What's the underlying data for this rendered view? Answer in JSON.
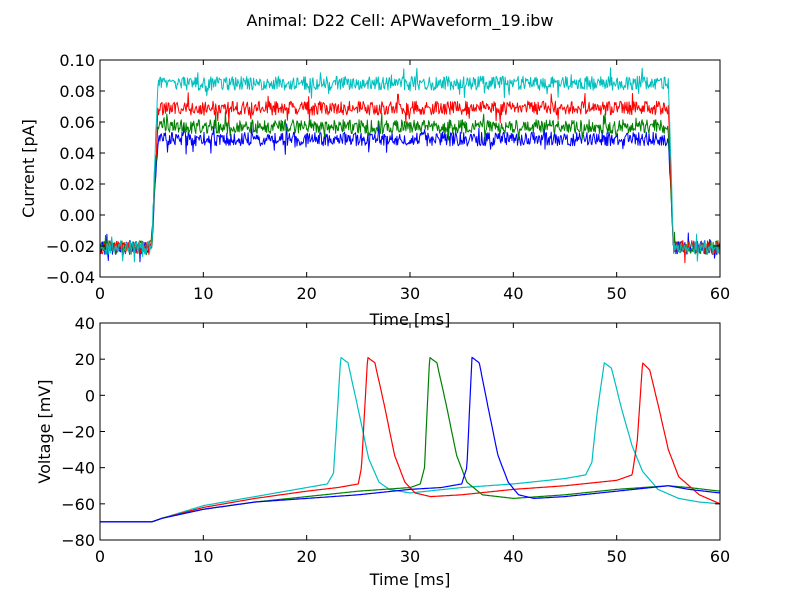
{
  "page": {
    "background": "#ffffff"
  },
  "suptitle": "Animal: D22 Cell: APWaveform_19.ibw",
  "chart_data": [
    {
      "type": "line",
      "panel": "top",
      "xlabel": "Time [ms]",
      "ylabel": "Current [pA]",
      "xlim": [
        0,
        60
      ],
      "ylim": [
        -0.04,
        0.1
      ],
      "xticks": [
        0,
        10,
        20,
        30,
        40,
        50,
        60
      ],
      "xtick_labels": [
        "0",
        "10",
        "20",
        "30",
        "40",
        "50",
        "60"
      ],
      "yticks": [
        -0.04,
        -0.02,
        0.0,
        0.02,
        0.04,
        0.06,
        0.08,
        0.1
      ],
      "ytick_labels": [
        "−0.04",
        "−0.02",
        "0.00",
        "0.02",
        "0.04",
        "0.06",
        "0.08",
        "0.10"
      ],
      "grid": false,
      "series": [
        {
          "color": "#0000ff",
          "noise": 0.0045,
          "x": [
            0,
            5,
            5.6,
            55,
            55.5,
            60
          ],
          "y": [
            -0.021,
            -0.021,
            0.049,
            0.049,
            -0.021,
            -0.021
          ]
        },
        {
          "color": "#008000",
          "noise": 0.0045,
          "x": [
            0,
            5,
            5.6,
            55,
            55.5,
            60
          ],
          "y": [
            -0.021,
            -0.021,
            0.057,
            0.057,
            -0.021,
            -0.021
          ]
        },
        {
          "color": "#ff0000",
          "noise": 0.0045,
          "x": [
            0,
            5,
            5.6,
            55,
            55.5,
            60
          ],
          "y": [
            -0.021,
            -0.021,
            0.069,
            0.069,
            -0.021,
            -0.021
          ]
        },
        {
          "color": "#00bfbf",
          "noise": 0.0045,
          "x": [
            0,
            5,
            5.6,
            55,
            55.5,
            60
          ],
          "y": [
            -0.021,
            -0.021,
            0.085,
            0.085,
            -0.021,
            -0.021
          ]
        }
      ]
    },
    {
      "type": "line",
      "panel": "bottom",
      "xlabel": "Time [ms]",
      "ylabel": "Voltage [mV]",
      "xlim": [
        0,
        60
      ],
      "ylim": [
        -80,
        40
      ],
      "xticks": [
        0,
        10,
        20,
        30,
        40,
        50,
        60
      ],
      "xtick_labels": [
        "0",
        "10",
        "20",
        "30",
        "40",
        "50",
        "60"
      ],
      "yticks": [
        -80,
        -60,
        -40,
        -20,
        0,
        20,
        40
      ],
      "ytick_labels": [
        "−80",
        "−60",
        "−40",
        "−20",
        "0",
        "20",
        "40"
      ],
      "grid": false,
      "series": [
        {
          "color": "#00bfbf",
          "x": [
            0,
            5,
            6,
            10,
            15,
            20,
            22,
            22.6,
            23.3,
            24,
            25,
            26,
            27,
            28,
            30,
            35,
            40,
            45,
            47,
            47.6,
            48.1,
            48.8,
            49.5,
            50.5,
            51.5,
            52.5,
            54,
            56,
            58,
            60
          ],
          "y": [
            -70,
            -70,
            -68,
            -61,
            -56,
            -51,
            -49,
            -43,
            21,
            18,
            -8,
            -35,
            -48,
            -52,
            -54,
            -51,
            -49,
            -46,
            -44,
            -37,
            -10,
            18,
            15,
            -8,
            -28,
            -42,
            -52,
            -57,
            -59,
            -60
          ]
        },
        {
          "color": "#ff0000",
          "x": [
            0,
            5,
            6,
            10,
            15,
            20,
            23,
            25,
            25.3,
            25.9,
            26.6,
            27.5,
            28.5,
            29.5,
            30.5,
            32,
            35,
            40,
            45,
            50,
            51.5,
            52,
            52.5,
            53.2,
            54,
            55,
            56,
            58,
            60
          ],
          "y": [
            -70,
            -70,
            -68,
            -62,
            -57,
            -53,
            -51,
            -49,
            -40,
            21,
            18,
            -5,
            -33,
            -48,
            -54,
            -56,
            -55,
            -52,
            -50,
            -47,
            -44,
            -25,
            18,
            14,
            -5,
            -30,
            -45,
            -55,
            -60
          ]
        },
        {
          "color": "#008000",
          "x": [
            0,
            5,
            6,
            10,
            15,
            20,
            25,
            30,
            31,
            31.4,
            31.9,
            32.6,
            33.5,
            34.5,
            35.5,
            37,
            40,
            45,
            50,
            55,
            57,
            60
          ],
          "y": [
            -70,
            -70,
            -68,
            -63,
            -59,
            -56,
            -53,
            -51,
            -49,
            -40,
            21,
            18,
            -5,
            -33,
            -48,
            -55,
            -57,
            -55,
            -52,
            -50,
            -51,
            -53
          ]
        },
        {
          "color": "#0000ff",
          "x": [
            0,
            5,
            6,
            10,
            15,
            20,
            25,
            30,
            33,
            35,
            35.5,
            36,
            36.7,
            37.5,
            38.5,
            39.5,
            40.5,
            42,
            45,
            50,
            55,
            57,
            60
          ],
          "y": [
            -70,
            -70,
            -68,
            -63,
            -59,
            -57,
            -55,
            -52,
            -51,
            -49,
            -40,
            21,
            18,
            -5,
            -33,
            -48,
            -55,
            -57,
            -56,
            -53,
            -50,
            -52,
            -54
          ]
        }
      ]
    }
  ]
}
